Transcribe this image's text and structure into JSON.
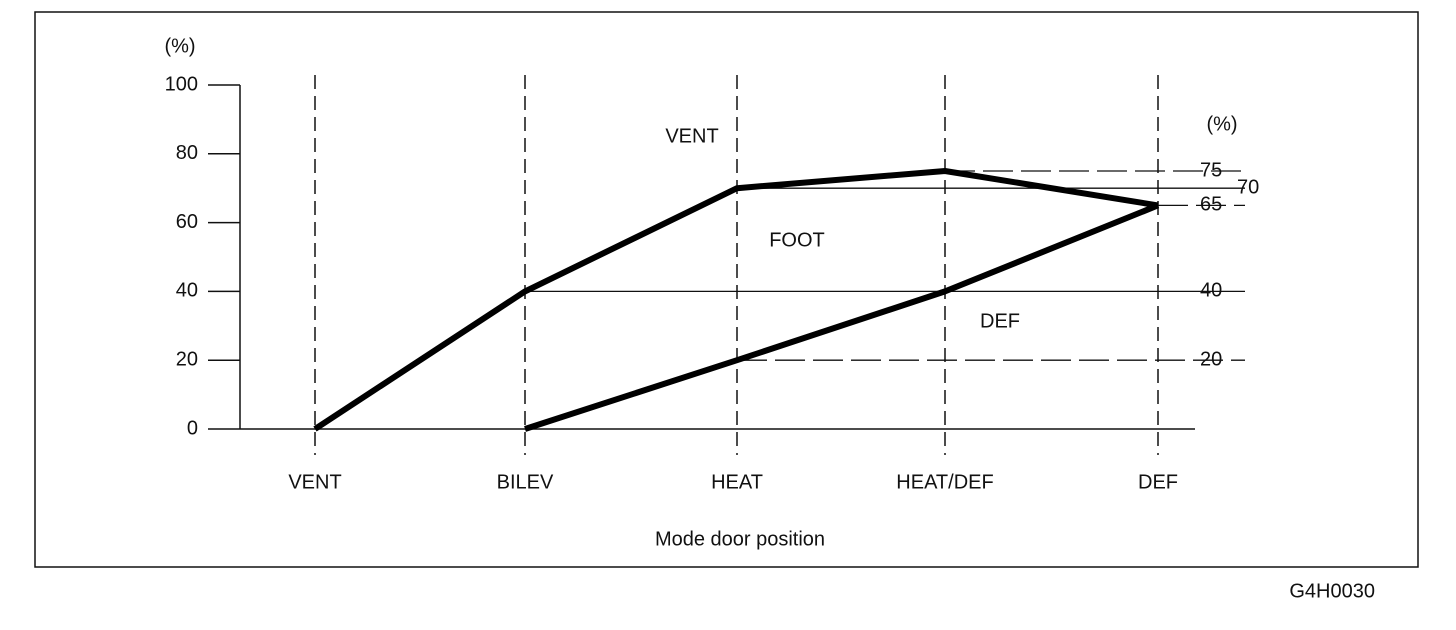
{
  "chart_data": {
    "type": "line",
    "y_unit_label": "(%)",
    "y2_unit_label": "(%)",
    "x_label": "Mode door position",
    "categories": [
      "VENT",
      "BILEV",
      "HEAT",
      "HEAT/DEF",
      "DEF"
    ],
    "series": [
      {
        "color": "#000000",
        "values": [
          0,
          40,
          70,
          75,
          65
        ]
      },
      {
        "color": "#000000",
        "values": [
          null,
          0,
          20,
          40,
          65
        ]
      }
    ],
    "ylim": [
      0,
      100
    ],
    "yticks": [
      0,
      20,
      40,
      60,
      80,
      100
    ],
    "y2lim": [
      0,
      100
    ],
    "y2ticks": [
      20,
      40,
      65,
      70,
      75
    ],
    "annotations": [
      "VENT",
      "FOOT",
      "DEF"
    ],
    "figure_code": "G4H0030"
  }
}
